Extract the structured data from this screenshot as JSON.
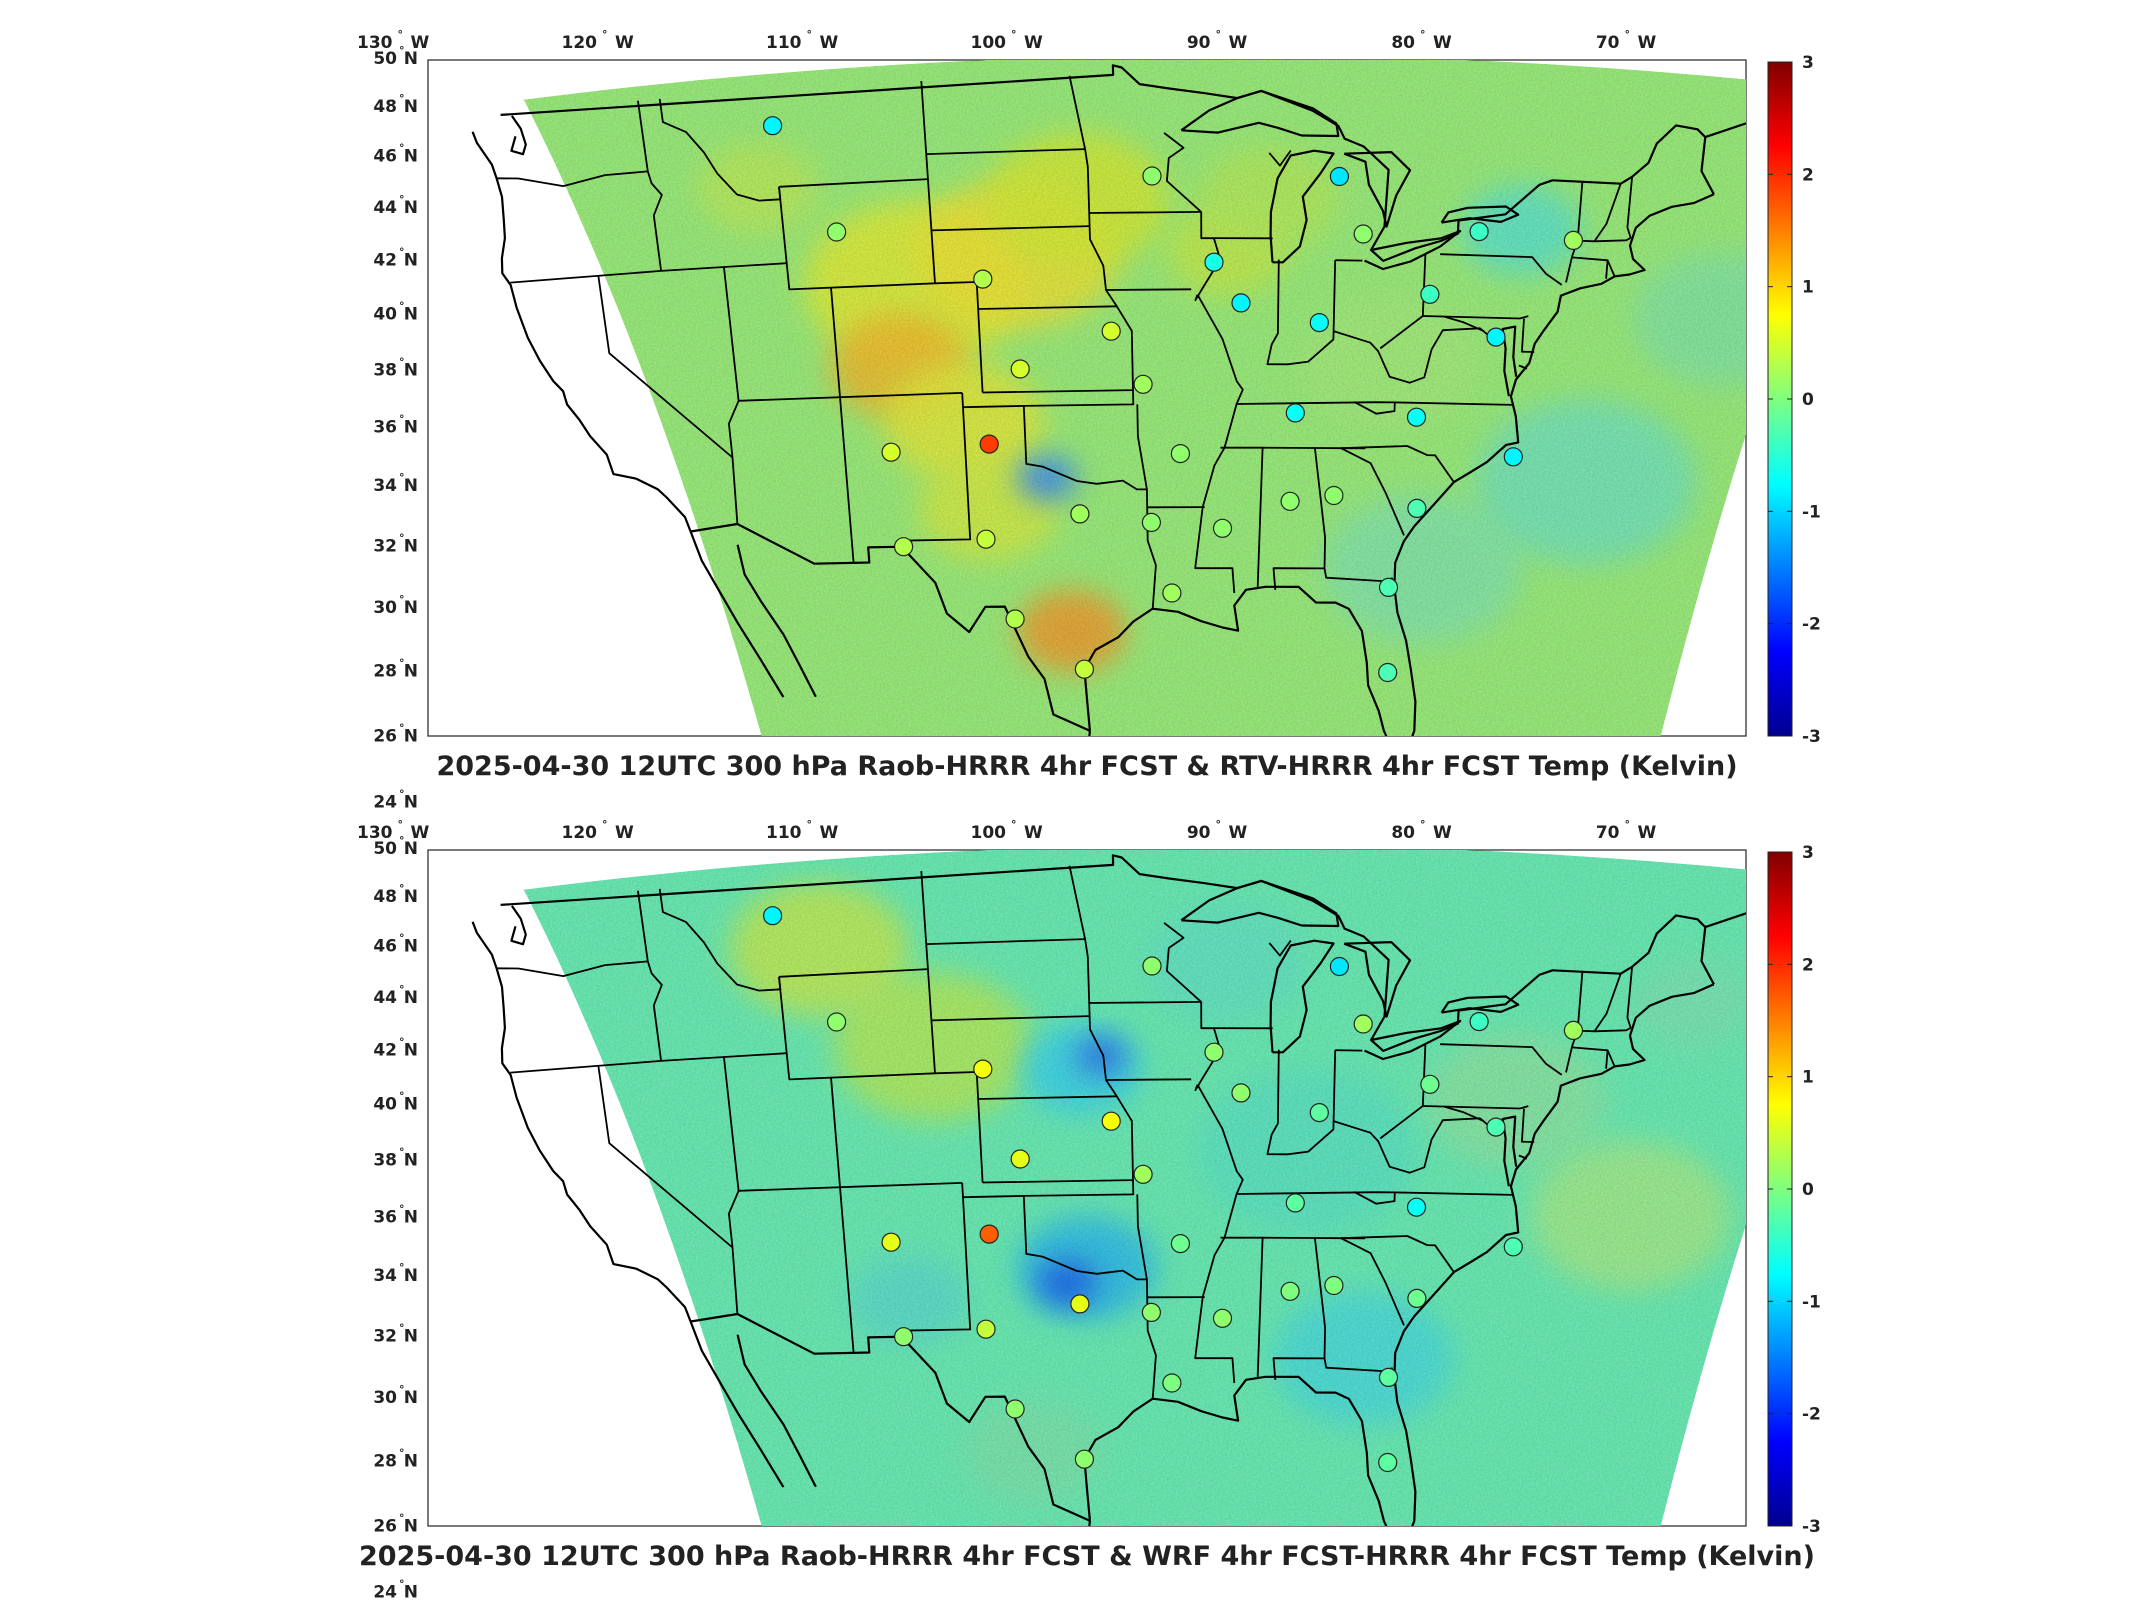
{
  "maps": [
    {
      "id": "top",
      "title": "2025-04-30 12UTC 300 hPa Raob-HRRR 4hr FCST & RTV-HRRR 4hr FCST Temp (Kelvin)",
      "field_tone": "warm",
      "stations": [
        {
          "lon": -111.0,
          "lat": 47.5,
          "value": -0.8
        },
        {
          "lon": -108.5,
          "lat": 43.1,
          "value": 0.1
        },
        {
          "lon": -101.7,
          "lat": 41.1,
          "value": 0.3
        },
        {
          "lon": -93.5,
          "lat": 44.9,
          "value": 0.1
        },
        {
          "lon": -84.7,
          "lat": 44.9,
          "value": -0.9
        },
        {
          "lon": -83.5,
          "lat": 42.7,
          "value": 0.1
        },
        {
          "lon": -78.0,
          "lat": 42.9,
          "value": -0.4
        },
        {
          "lon": -73.5,
          "lat": 42.7,
          "value": 0.2
        },
        {
          "lon": -90.6,
          "lat": 41.6,
          "value": -0.6
        },
        {
          "lon": -89.3,
          "lat": 40.1,
          "value": -0.8
        },
        {
          "lon": -95.6,
          "lat": 39.1,
          "value": 0.5
        },
        {
          "lon": -100.1,
          "lat": 37.8,
          "value": 0.5
        },
        {
          "lon": -94.1,
          "lat": 37.2,
          "value": 0.2
        },
        {
          "lon": -85.5,
          "lat": 39.4,
          "value": -0.7
        },
        {
          "lon": -80.2,
          "lat": 40.5,
          "value": -0.4
        },
        {
          "lon": -86.6,
          "lat": 36.2,
          "value": -0.7
        },
        {
          "lon": -80.6,
          "lat": 36.1,
          "value": -0.7
        },
        {
          "lon": -76.9,
          "lat": 39.0,
          "value": -0.8
        },
        {
          "lon": -75.7,
          "lat": 34.8,
          "value": -0.8
        },
        {
          "lon": -106.7,
          "lat": 35.0,
          "value": 0.5
        },
        {
          "lon": -101.8,
          "lat": 35.2,
          "value": 1.9
        },
        {
          "lon": -97.4,
          "lat": 32.8,
          "value": 0.2
        },
        {
          "lon": -92.3,
          "lat": 34.8,
          "value": 0.1
        },
        {
          "lon": -93.8,
          "lat": 32.5,
          "value": 0.1
        },
        {
          "lon": -90.2,
          "lat": 32.3,
          "value": 0.1
        },
        {
          "lon": -86.8,
          "lat": 33.2,
          "value": 0.1
        },
        {
          "lon": -84.6,
          "lat": 33.4,
          "value": 0.1
        },
        {
          "lon": -80.4,
          "lat": 33.0,
          "value": -0.3
        },
        {
          "lon": -102.2,
          "lat": 32.0,
          "value": 0.4
        },
        {
          "lon": -106.4,
          "lat": 31.8,
          "value": 0.3
        },
        {
          "lon": -100.9,
          "lat": 29.4,
          "value": 0.3
        },
        {
          "lon": -97.4,
          "lat": 27.8,
          "value": 0.4
        },
        {
          "lon": -92.8,
          "lat": 30.2,
          "value": 0.2
        },
        {
          "lon": -81.7,
          "lat": 30.4,
          "value": -0.3
        },
        {
          "lon": -81.6,
          "lat": 27.7,
          "value": -0.3
        }
      ]
    },
    {
      "id": "bottom",
      "title": "2025-04-30 12UTC 300 hPa Raob-HRRR 4hr FCST & WRF 4hr FCST-HRRR 4hr FCST Temp (Kelvin)",
      "field_tone": "cool",
      "stations": [
        {
          "lon": -111.0,
          "lat": 47.5,
          "value": -0.8
        },
        {
          "lon": -108.5,
          "lat": 43.1,
          "value": 0.1
        },
        {
          "lon": -101.7,
          "lat": 41.1,
          "value": 0.7
        },
        {
          "lon": -93.5,
          "lat": 44.9,
          "value": 0.1
        },
        {
          "lon": -84.7,
          "lat": 44.9,
          "value": -0.9
        },
        {
          "lon": -83.5,
          "lat": 42.7,
          "value": 0.2
        },
        {
          "lon": -78.0,
          "lat": 42.9,
          "value": -0.4
        },
        {
          "lon": -73.5,
          "lat": 42.7,
          "value": 0.2
        },
        {
          "lon": -90.6,
          "lat": 41.6,
          "value": 0.1
        },
        {
          "lon": -89.3,
          "lat": 40.1,
          "value": 0.1
        },
        {
          "lon": -95.6,
          "lat": 39.1,
          "value": 0.7
        },
        {
          "lon": -100.1,
          "lat": 37.8,
          "value": 0.6
        },
        {
          "lon": -94.1,
          "lat": 37.2,
          "value": 0.2
        },
        {
          "lon": -85.5,
          "lat": 39.4,
          "value": -0.2
        },
        {
          "lon": -80.2,
          "lat": 40.5,
          "value": -0.1
        },
        {
          "lon": -86.6,
          "lat": 36.2,
          "value": -0.2
        },
        {
          "lon": -80.6,
          "lat": 36.1,
          "value": -0.7
        },
        {
          "lon": -76.9,
          "lat": 39.0,
          "value": -0.3
        },
        {
          "lon": -75.7,
          "lat": 34.8,
          "value": -0.3
        },
        {
          "lon": -106.7,
          "lat": 35.0,
          "value": 0.6
        },
        {
          "lon": -101.8,
          "lat": 35.2,
          "value": 1.7
        },
        {
          "lon": -97.4,
          "lat": 32.8,
          "value": 0.6
        },
        {
          "lon": -92.3,
          "lat": 34.8,
          "value": -0.1
        },
        {
          "lon": -93.8,
          "lat": 32.5,
          "value": 0.1
        },
        {
          "lon": -90.2,
          "lat": 32.3,
          "value": 0.1
        },
        {
          "lon": -86.8,
          "lat": 33.2,
          "value": 0.0
        },
        {
          "lon": -84.6,
          "lat": 33.4,
          "value": 0.0
        },
        {
          "lon": -80.4,
          "lat": 33.0,
          "value": -0.1
        },
        {
          "lon": -102.2,
          "lat": 32.0,
          "value": 0.4
        },
        {
          "lon": -106.4,
          "lat": 31.8,
          "value": 0.1
        },
        {
          "lon": -100.9,
          "lat": 29.4,
          "value": 0.1
        },
        {
          "lon": -97.4,
          "lat": 27.8,
          "value": 0.1
        },
        {
          "lon": -92.8,
          "lat": 30.2,
          "value": 0.0
        },
        {
          "lon": -81.7,
          "lat": 30.4,
          "value": -0.2
        },
        {
          "lon": -81.6,
          "lat": 27.7,
          "value": -0.2
        }
      ]
    }
  ],
  "lon_ticks": [
    {
      "value": -130,
      "num": "130",
      "hemi": "W"
    },
    {
      "value": -120,
      "num": "120",
      "hemi": "W"
    },
    {
      "value": -110,
      "num": "110",
      "hemi": "W"
    },
    {
      "value": -100,
      "num": "100",
      "hemi": "W"
    },
    {
      "value": -90,
      "num": "90",
      "hemi": "W"
    },
    {
      "value": -80,
      "num": "80",
      "hemi": "W"
    },
    {
      "value": -70,
      "num": "70",
      "hemi": "W"
    }
  ],
  "lat_ticks": [
    {
      "value": 50,
      "num": "50",
      "hemi": "N"
    },
    {
      "value": 48,
      "num": "48",
      "hemi": "N"
    },
    {
      "value": 46,
      "num": "46",
      "hemi": "N"
    },
    {
      "value": 44,
      "num": "44",
      "hemi": "N"
    },
    {
      "value": 42,
      "num": "42",
      "hemi": "N"
    },
    {
      "value": 40,
      "num": "40",
      "hemi": "N"
    },
    {
      "value": 38,
      "num": "38",
      "hemi": "N"
    },
    {
      "value": 36,
      "num": "36",
      "hemi": "N"
    },
    {
      "value": 34,
      "num": "34",
      "hemi": "N"
    },
    {
      "value": 32,
      "num": "32",
      "hemi": "N"
    },
    {
      "value": 30,
      "num": "30",
      "hemi": "N"
    },
    {
      "value": 28,
      "num": "28",
      "hemi": "N"
    },
    {
      "value": 26,
      "num": "26",
      "hemi": "N"
    },
    {
      "value": 24,
      "num": "24",
      "hemi": "N"
    }
  ],
  "colorbar": {
    "range": [
      -3,
      3
    ],
    "ticks": [
      "3",
      "2",
      "1",
      "0",
      "-1",
      "-2",
      "-3"
    ],
    "colormap": [
      "#00008f",
      "#0000ff",
      "#00ffff",
      "#7fff7f",
      "#ffff00",
      "#ff0000",
      "#800000"
    ]
  }
}
